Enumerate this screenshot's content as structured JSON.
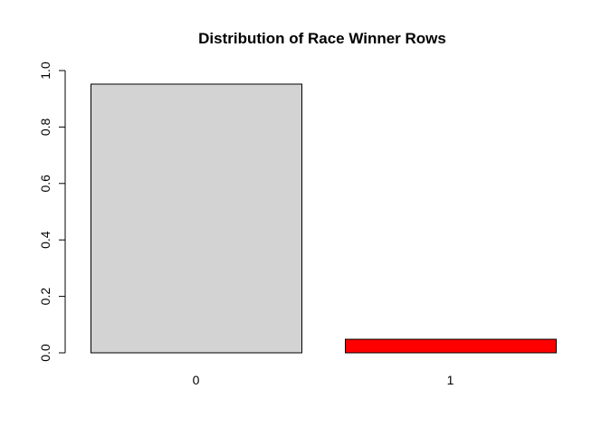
{
  "chart_data": {
    "type": "bar",
    "title": "Distribution of Race Winner Rows",
    "xlabel": "",
    "ylabel": "",
    "categories": [
      "0",
      "1"
    ],
    "values": [
      0.952,
      0.048
    ],
    "bar_colors": [
      "#d3d3d3",
      "#ff0000"
    ],
    "bar_border_color": "#000000",
    "ylim": [
      0,
      1
    ],
    "yticks": [
      "0.0",
      "0.2",
      "0.4",
      "0.6",
      "0.8",
      "1.0"
    ],
    "ytick_values": [
      0,
      0.2,
      0.4,
      0.6,
      0.8,
      1.0
    ],
    "grid": false,
    "legend": "none"
  }
}
